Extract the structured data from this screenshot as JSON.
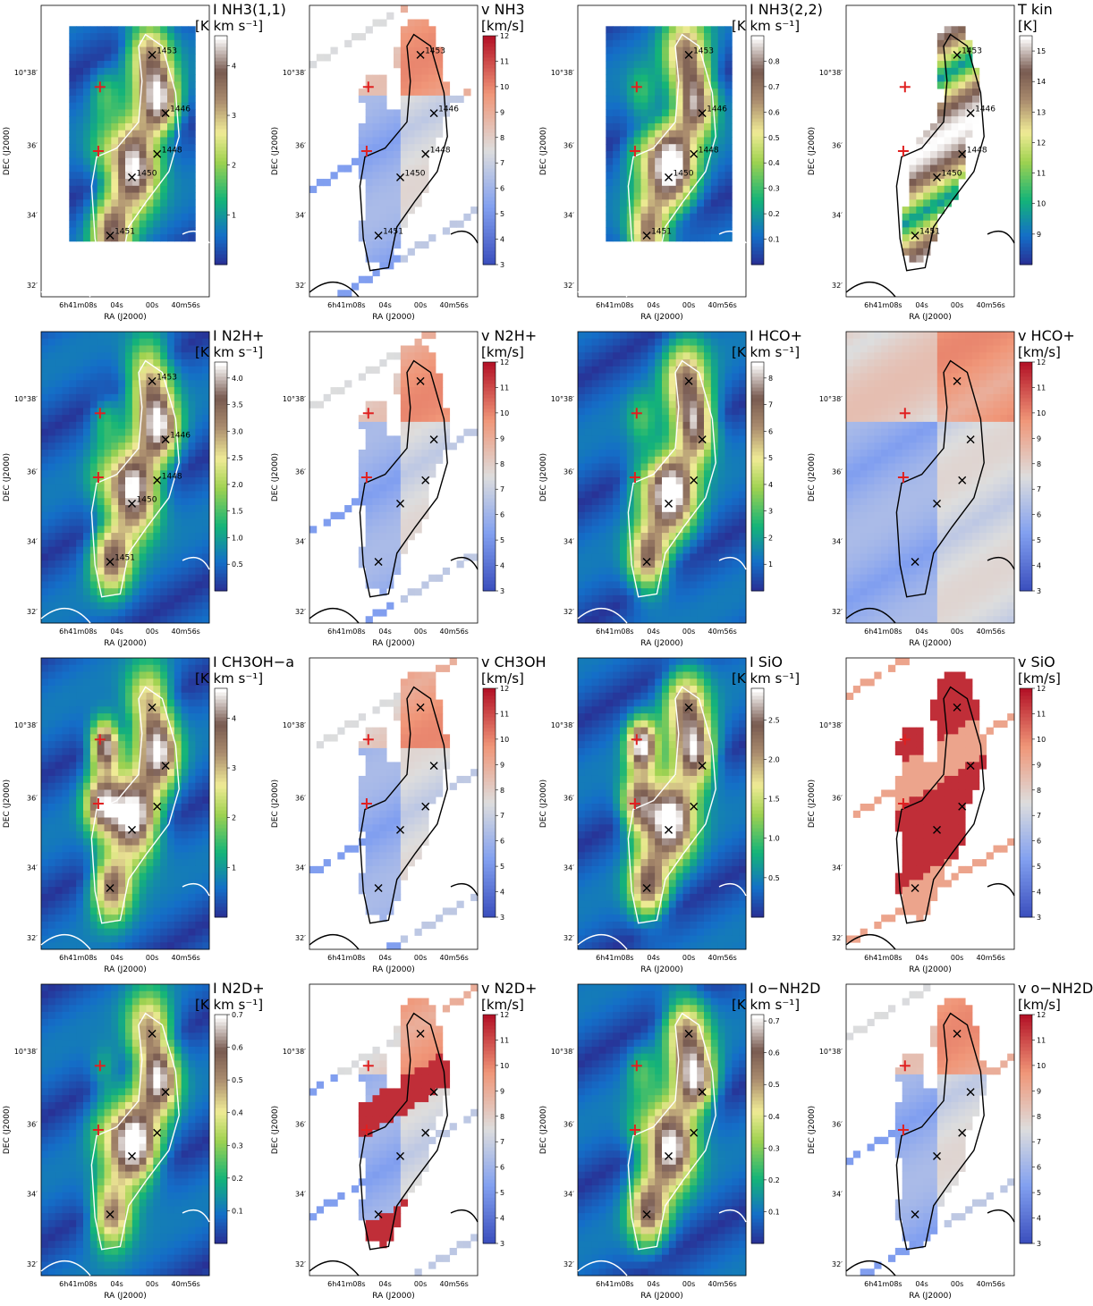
{
  "figure": {
    "common": {
      "xlabel": "RA (J2000)",
      "ylabel": "DEC (J2000)",
      "ra_ticks": [
        "6h41m08s",
        "04s",
        "00s",
        "40m56s"
      ],
      "dec_ticks": [
        "10°38′",
        "36′",
        "34′",
        "32′"
      ]
    },
    "panels": [
      {
        "id": "nh3-11-int",
        "title": "I NH3(1,1)",
        "unit": "[K km s⁻¹]",
        "kind": "intensity",
        "colorbar": {
          "min": 0,
          "max": 4.6,
          "ticks": [
            "1",
            "2",
            "3",
            "4"
          ]
        },
        "cores": [
          "1453",
          "1446",
          "1448",
          "1450",
          "1451"
        ],
        "contour_color": "#ffffff"
      },
      {
        "id": "nh3-vel",
        "title": "v NH3",
        "unit": "[km/s]",
        "kind": "velocity",
        "colorbar": {
          "min": 3,
          "max": 12,
          "ticks": [
            "3",
            "4",
            "5",
            "6",
            "7",
            "8",
            "9",
            "10",
            "11",
            "12"
          ]
        },
        "cores": [
          "1453",
          "1446",
          "1448",
          "1450",
          "1451"
        ],
        "contour_color": "#000000"
      },
      {
        "id": "nh3-22-int",
        "title": "I NH3(2,2)",
        "unit": "[K km s⁻¹]",
        "kind": "intensity",
        "colorbar": {
          "min": 0,
          "max": 0.9,
          "ticks": [
            "0.1",
            "0.2",
            "0.3",
            "0.4",
            "0.5",
            "0.6",
            "0.7",
            "0.8"
          ]
        },
        "cores": [
          "1453",
          "1446",
          "1448",
          "1450",
          "1451"
        ],
        "contour_color": "#ffffff"
      },
      {
        "id": "tkin",
        "title": "T kin",
        "unit": "[K]",
        "kind": "tkin",
        "colorbar": {
          "min": 8,
          "max": 15.5,
          "ticks": [
            "9",
            "10",
            "11",
            "12",
            "13",
            "14",
            "15"
          ]
        },
        "cores": [
          "1453",
          "1446",
          "1448",
          "1450",
          "1451"
        ],
        "contour_color": "#000000"
      },
      {
        "id": "n2h-int",
        "title": "I N2H+",
        "unit": "[K km s⁻¹]",
        "kind": "intensity",
        "colorbar": {
          "min": 0,
          "max": 4.3,
          "ticks": [
            "0.5",
            "1.0",
            "1.5",
            "2.0",
            "2.5",
            "3.0",
            "3.5",
            "4.0"
          ]
        },
        "cores": [
          "1453",
          "1446",
          "1448",
          "1450",
          "1451"
        ],
        "contour_color": "#ffffff"
      },
      {
        "id": "n2h-vel",
        "title": "v N2H+",
        "unit": "[km/s]",
        "kind": "velocity",
        "colorbar": {
          "min": 3,
          "max": 12,
          "ticks": [
            "3",
            "4",
            "5",
            "6",
            "7",
            "8",
            "9",
            "10",
            "11",
            "12"
          ]
        },
        "cores": [],
        "contour_color": "#000000"
      },
      {
        "id": "hco-int",
        "title": "I HCO+",
        "unit": "[K km s⁻¹]",
        "kind": "intensity",
        "colorbar": {
          "min": 0,
          "max": 8.6,
          "ticks": [
            "1",
            "2",
            "3",
            "4",
            "5",
            "6",
            "7",
            "8"
          ]
        },
        "cores": [],
        "contour_color": "#ffffff"
      },
      {
        "id": "hco-vel",
        "title": "v HCO+",
        "unit": "[km/s]",
        "kind": "velocity",
        "colorbar": {
          "min": 3,
          "max": 12,
          "ticks": [
            "3",
            "4",
            "5",
            "6",
            "7",
            "8",
            "9",
            "10",
            "11",
            "12"
          ]
        },
        "cores": [],
        "contour_color": "#000000"
      },
      {
        "id": "ch3oh-int",
        "title": "I CH3OH−a",
        "unit": "[K km s⁻¹]",
        "kind": "intensity",
        "colorbar": {
          "min": 0,
          "max": 4.6,
          "ticks": [
            "1",
            "2",
            "3",
            "4"
          ]
        },
        "cores": [],
        "contour_color": "#ffffff"
      },
      {
        "id": "ch3oh-vel",
        "title": "v CH3OH",
        "unit": "[km/s]",
        "kind": "velocity",
        "colorbar": {
          "min": 3,
          "max": 12,
          "ticks": [
            "3",
            "4",
            "5",
            "6",
            "7",
            "8",
            "9",
            "10",
            "11",
            "12"
          ]
        },
        "cores": [],
        "contour_color": "#000000"
      },
      {
        "id": "sio-int",
        "title": "I SiO",
        "unit": "[K km s⁻¹]",
        "kind": "intensity",
        "colorbar": {
          "min": 0,
          "max": 2.9,
          "ticks": [
            "0.5",
            "1.0",
            "1.5",
            "2.0",
            "2.5"
          ]
        },
        "cores": [],
        "contour_color": "#ffffff"
      },
      {
        "id": "sio-vel",
        "title": "v SiO",
        "unit": "[km/s]",
        "kind": "velocity",
        "colorbar": {
          "min": 3,
          "max": 12,
          "ticks": [
            "3",
            "4",
            "5",
            "6",
            "7",
            "8",
            "9",
            "10",
            "11",
            "12"
          ]
        },
        "cores": [],
        "contour_color": "#000000"
      },
      {
        "id": "n2d-int",
        "title": "I N2D+",
        "unit": "[K km s⁻¹]",
        "kind": "intensity",
        "colorbar": {
          "min": 0,
          "max": 0.7,
          "ticks": [
            "0.1",
            "0.2",
            "0.3",
            "0.4",
            "0.5",
            "0.6",
            "0.7"
          ]
        },
        "cores": [],
        "contour_color": "#ffffff"
      },
      {
        "id": "n2d-vel",
        "title": "v N2D+",
        "unit": "[km/s]",
        "kind": "velocity",
        "colorbar": {
          "min": 3,
          "max": 12,
          "ticks": [
            "3",
            "4",
            "5",
            "6",
            "7",
            "8",
            "9",
            "10",
            "11",
            "12"
          ]
        },
        "cores": [],
        "contour_color": "#000000"
      },
      {
        "id": "nh2d-int",
        "title": "I o−NH2D",
        "unit": "[K km s⁻¹]",
        "kind": "intensity",
        "colorbar": {
          "min": 0,
          "max": 0.72,
          "ticks": [
            "0.1",
            "0.2",
            "0.3",
            "0.4",
            "0.5",
            "0.6",
            "0.7"
          ]
        },
        "cores": [],
        "contour_color": "#ffffff"
      },
      {
        "id": "nh2d-vel",
        "title": "v o−NH2D",
        "unit": "[km/s]",
        "kind": "velocity",
        "colorbar": {
          "min": 3,
          "max": 12,
          "ticks": [
            "3",
            "4",
            "5",
            "6",
            "7",
            "8",
            "9",
            "10",
            "11",
            "12"
          ]
        },
        "cores": [],
        "contour_color": "#000000"
      }
    ]
  }
}
